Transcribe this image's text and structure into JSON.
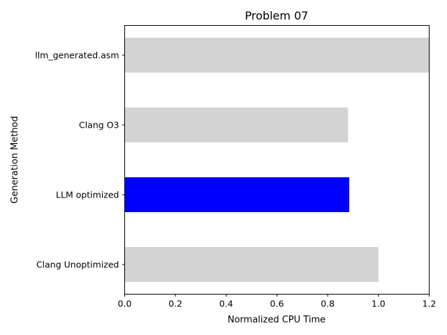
{
  "chart_data": {
    "type": "bar",
    "orientation": "horizontal",
    "title": "Problem 07",
    "xlabel": "Normalized CPU Time",
    "ylabel": "Generation Method",
    "xlim": [
      0,
      1.2
    ],
    "xticks": [
      "0.0",
      "0.2",
      "0.4",
      "0.6",
      "0.8",
      "1.0",
      "1.2"
    ],
    "grid": false,
    "categories": [
      "llm_generated.asm",
      "Clang O3",
      "LLM optimized",
      "Clang Unoptimized"
    ],
    "values": [
      1.2,
      0.88,
      0.885,
      1.0
    ],
    "colors": [
      "#d3d3d3",
      "#d3d3d3",
      "#0000ff",
      "#d3d3d3"
    ]
  }
}
